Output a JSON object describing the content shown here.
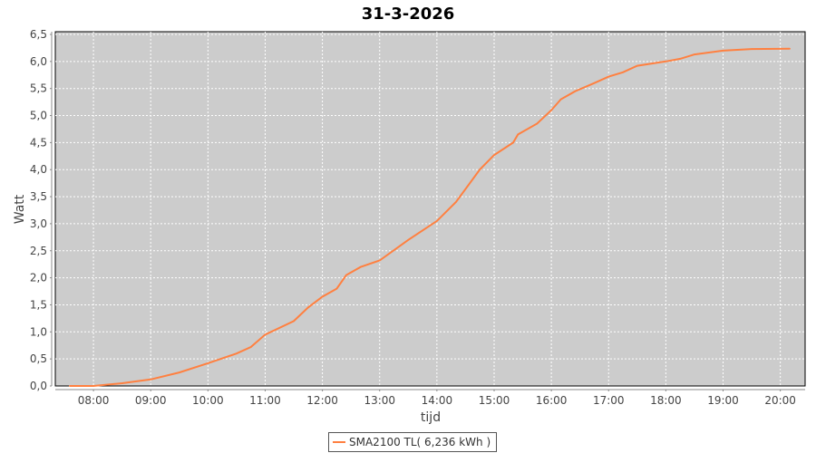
{
  "chart_data": {
    "type": "line",
    "title": "31-3-2026",
    "xlabel": "tijd",
    "ylabel": "Watt",
    "xlim": [
      "07:20",
      "20:26"
    ],
    "ylim": [
      0,
      6.5
    ],
    "x_ticks": [
      "08:00",
      "09:00",
      "10:00",
      "11:00",
      "12:00",
      "13:00",
      "14:00",
      "15:00",
      "16:00",
      "17:00",
      "18:00",
      "19:00",
      "20:00"
    ],
    "y_ticks": [
      "0,0",
      "0,5",
      "1,0",
      "1,5",
      "2,0",
      "2,5",
      "3,0",
      "3,5",
      "4,0",
      "4,5",
      "5,0",
      "5,5",
      "6,0",
      "6,5"
    ],
    "grid": true,
    "legend_position": "bottom",
    "background_color": "#cccccc",
    "series": [
      {
        "name": "SMA2100 TL( 6,236 kWh )",
        "color": "#ff8040",
        "x": [
          "07:35",
          "08:00",
          "08:30",
          "09:00",
          "09:30",
          "10:00",
          "10:30",
          "10:45",
          "11:00",
          "11:30",
          "11:45",
          "12:00",
          "12:15",
          "12:25",
          "12:40",
          "13:00",
          "13:30",
          "14:00",
          "14:20",
          "14:45",
          "15:00",
          "15:20",
          "15:25",
          "15:45",
          "16:00",
          "16:10",
          "16:25",
          "16:45",
          "17:00",
          "17:15",
          "17:30",
          "18:00",
          "18:15",
          "18:30",
          "19:00",
          "19:30",
          "20:10"
        ],
        "values": [
          0,
          0,
          0.05,
          0.12,
          0.25,
          0.42,
          0.6,
          0.72,
          0.95,
          1.2,
          1.45,
          1.65,
          1.8,
          2.05,
          2.2,
          2.32,
          2.7,
          3.05,
          3.4,
          4.0,
          4.27,
          4.5,
          4.65,
          4.85,
          5.1,
          5.3,
          5.45,
          5.6,
          5.72,
          5.8,
          5.92,
          6.0,
          6.05,
          6.13,
          6.2,
          6.23,
          6.236
        ]
      }
    ]
  }
}
